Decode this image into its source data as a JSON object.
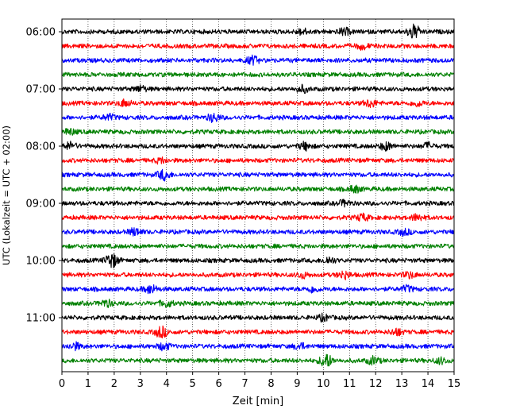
{
  "chart_data": {
    "type": "line",
    "title": "",
    "xlabel": "Zeit  [min]",
    "ylabel": "UTC (Lokalzeit = UTC + 02:00)",
    "xlim": [
      0,
      15
    ],
    "x_ticks": [
      0,
      1,
      2,
      3,
      4,
      5,
      6,
      7,
      8,
      9,
      10,
      11,
      12,
      13,
      14,
      15
    ],
    "y_tick_labels": [
      "06:00",
      "07:00",
      "08:00",
      "09:00",
      "10:00",
      "11:00"
    ],
    "grid": "vertical dotted",
    "legend": "none",
    "color_cycle": [
      "#000000",
      "#ff0000",
      "#0000ff",
      "#008000"
    ],
    "traces": [
      {
        "time": "06:00",
        "color": "#000000",
        "events": [
          {
            "t": 9.2,
            "a": 1.6
          },
          {
            "t": 10.8,
            "a": 1.8
          },
          {
            "t": 13.45,
            "a": 4.0
          }
        ]
      },
      {
        "time": "06:15",
        "color": "#ff0000",
        "events": [
          {
            "t": 11.5,
            "a": 1.5
          }
        ]
      },
      {
        "time": "06:30",
        "color": "#0000ff",
        "events": [
          {
            "t": 7.3,
            "a": 2.2
          }
        ]
      },
      {
        "time": "06:45",
        "color": "#008000",
        "events": []
      },
      {
        "time": "07:00",
        "color": "#000000",
        "events": [
          {
            "t": 3.0,
            "a": 1.5
          },
          {
            "t": 9.2,
            "a": 1.8
          }
        ]
      },
      {
        "time": "07:15",
        "color": "#ff0000",
        "events": [
          {
            "t": 2.4,
            "a": 1.8
          },
          {
            "t": 11.8,
            "a": 2.0
          },
          {
            "t": 13.6,
            "a": 1.5
          }
        ]
      },
      {
        "time": "07:30",
        "color": "#0000ff",
        "events": [
          {
            "t": 1.8,
            "a": 1.5
          },
          {
            "t": 5.8,
            "a": 2.2
          }
        ]
      },
      {
        "time": "07:45",
        "color": "#008000",
        "events": [
          {
            "t": 0.3,
            "a": 1.5
          }
        ]
      },
      {
        "time": "08:00",
        "color": "#000000",
        "events": [
          {
            "t": 0.3,
            "a": 2.0
          },
          {
            "t": 9.3,
            "a": 2.0
          },
          {
            "t": 12.4,
            "a": 2.2
          },
          {
            "t": 14.0,
            "a": 1.6
          }
        ]
      },
      {
        "time": "08:15",
        "color": "#ff0000",
        "events": [
          {
            "t": 3.8,
            "a": 1.3
          }
        ]
      },
      {
        "time": "08:30",
        "color": "#0000ff",
        "events": [
          {
            "t": 3.9,
            "a": 2.8
          }
        ]
      },
      {
        "time": "08:45",
        "color": "#008000",
        "events": [
          {
            "t": 11.2,
            "a": 1.8
          }
        ]
      },
      {
        "time": "09:00",
        "color": "#000000",
        "events": [
          {
            "t": 10.8,
            "a": 1.5
          }
        ]
      },
      {
        "time": "09:15",
        "color": "#ff0000",
        "events": [
          {
            "t": 11.5,
            "a": 1.8
          },
          {
            "t": 13.6,
            "a": 1.8
          }
        ]
      },
      {
        "time": "09:30",
        "color": "#0000ff",
        "events": [
          {
            "t": 2.8,
            "a": 2.0
          },
          {
            "t": 13.1,
            "a": 1.5
          }
        ]
      },
      {
        "time": "09:45",
        "color": "#008000",
        "events": []
      },
      {
        "time": "10:00",
        "color": "#000000",
        "events": [
          {
            "t": 1.9,
            "a": 4.2
          },
          {
            "t": 10.2,
            "a": 1.8
          }
        ]
      },
      {
        "time": "10:15",
        "color": "#ff0000",
        "events": [
          {
            "t": 9.2,
            "a": 1.5
          },
          {
            "t": 10.8,
            "a": 2.0
          },
          {
            "t": 13.3,
            "a": 1.6
          }
        ]
      },
      {
        "time": "10:30",
        "color": "#0000ff",
        "events": [
          {
            "t": 3.4,
            "a": 2.4
          },
          {
            "t": 9.6,
            "a": 1.6
          },
          {
            "t": 13.2,
            "a": 1.6
          }
        ]
      },
      {
        "time": "10:45",
        "color": "#008000",
        "events": [
          {
            "t": 1.7,
            "a": 1.8
          },
          {
            "t": 4.0,
            "a": 1.8
          }
        ]
      },
      {
        "time": "11:00",
        "color": "#000000",
        "events": [
          {
            "t": 10.0,
            "a": 1.6
          }
        ]
      },
      {
        "time": "11:15",
        "color": "#ff0000",
        "events": [
          {
            "t": 3.8,
            "a": 3.0
          },
          {
            "t": 12.8,
            "a": 1.8
          }
        ]
      },
      {
        "time": "11:30",
        "color": "#0000ff",
        "events": [
          {
            "t": 0.5,
            "a": 1.8
          },
          {
            "t": 3.9,
            "a": 2.0
          },
          {
            "t": 9.1,
            "a": 1.6
          }
        ]
      },
      {
        "time": "11:45",
        "color": "#008000",
        "events": [
          {
            "t": 10.1,
            "a": 4.0
          },
          {
            "t": 11.9,
            "a": 2.0
          },
          {
            "t": 14.5,
            "a": 1.6
          }
        ]
      }
    ]
  }
}
